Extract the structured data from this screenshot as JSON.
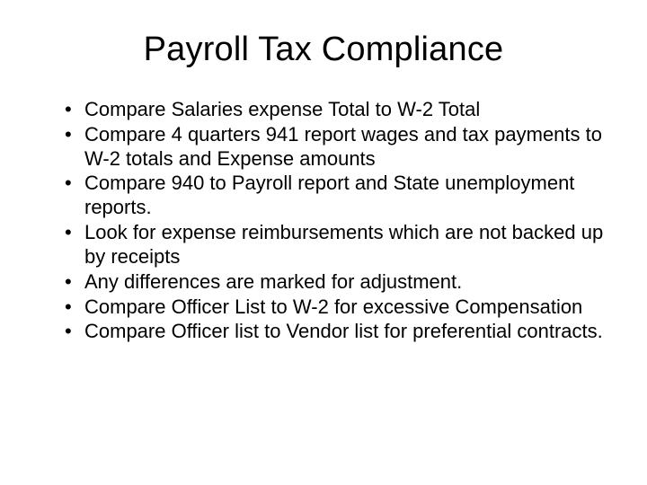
{
  "title": "Payroll Tax Compliance",
  "title_fontsize": 38,
  "title_color": "#000000",
  "body_fontsize": 22,
  "body_color": "#000000",
  "background_color": "#ffffff",
  "bullets": [
    "Compare Salaries expense Total to W-2 Total",
    "Compare 4 quarters 941 report wages and tax payments to W-2 totals and Expense amounts",
    "Compare 940 to Payroll report and State unemployment reports.",
    "Look for expense reimbursements which are not backed up by receipts",
    "Any differences are marked for adjustment.",
    "Compare Officer List to  W-2 for excessive Compensation",
    "Compare Officer list to Vendor list for preferential contracts."
  ]
}
